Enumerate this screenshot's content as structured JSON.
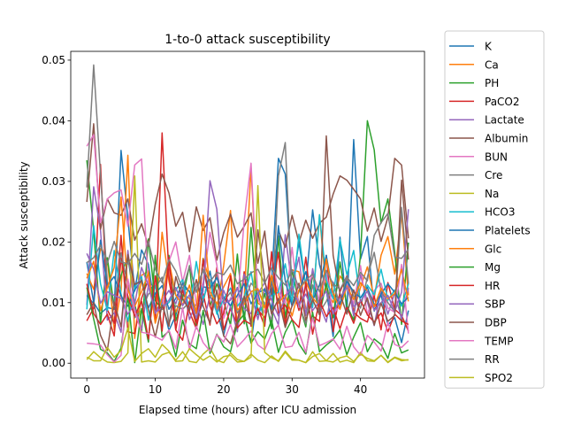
{
  "chart_data": {
    "type": "line",
    "title": "1-to-0 attack susceptibility",
    "xlabel": "Elapsed time (hours) after ICU admission",
    "ylabel": "Attack susceptibility",
    "xlim": [
      -2.35,
      49.35
    ],
    "ylim": [
      -0.00245,
      0.05145
    ],
    "xticks": [
      0,
      10,
      20,
      30,
      40
    ],
    "yticks": [
      0.0,
      0.01,
      0.02,
      0.03,
      0.04,
      0.05
    ],
    "ytick_labels": [
      "0.00",
      "0.01",
      "0.02",
      "0.03",
      "0.04",
      "0.05"
    ],
    "legend_position": "outside-right",
    "series": [
      {
        "name": "K",
        "color": "#1f77b4",
        "values": [
          0.0167,
          0.01,
          0.0082,
          0.0092,
          0.0089,
          0.0351,
          0.0239,
          0.0119,
          0.0187,
          0.0163,
          0.0086,
          0.0101,
          0.0054,
          0.0079,
          0.0125,
          0.0119,
          0.0072,
          0.0101,
          0.0152,
          0.0087,
          0.0046,
          0.0094,
          0.0125,
          0.0081,
          0.0034,
          0.0116,
          0.0067,
          0.0133,
          0.0338,
          0.0312,
          0.0128,
          0.0199,
          0.0126,
          0.0253,
          0.0163,
          0.0121,
          0.0044,
          0.0208,
          0.0083,
          0.0369,
          0.0172,
          0.0209,
          0.0086,
          0.0113,
          0.0063,
          0.0075,
          0.0034,
          0.0087
        ]
      },
      {
        "name": "Ca",
        "color": "#ff7f0e",
        "values": [
          0.0148,
          0.0122,
          0.0189,
          0.0171,
          0.0055,
          0.012,
          0.0343,
          0.0041,
          0.0145,
          0.0152,
          0.0068,
          0.0216,
          0.0135,
          0.0084,
          0.0113,
          0.0107,
          0.0061,
          0.0173,
          0.0133,
          0.0087,
          0.0161,
          0.0252,
          0.0057,
          0.0106,
          0.0322,
          0.0099,
          0.0092,
          0.0145,
          0.0115,
          0.0066,
          0.0154,
          0.0151,
          0.009,
          0.0095,
          0.0245,
          0.0118,
          0.01,
          0.0144,
          0.0128,
          0.0086,
          0.0125,
          0.0159,
          0.0107,
          0.0178,
          0.0209,
          0.0147,
          0.0246,
          0.0112
        ]
      },
      {
        "name": "PH",
        "color": "#2ca02c",
        "values": [
          0.0335,
          0.0218,
          0.0065,
          0.0174,
          0.0092,
          0.0145,
          0.0176,
          0.0097,
          0.0051,
          0.0205,
          0.0103,
          0.0089,
          0.0178,
          0.007,
          0.0107,
          0.0161,
          0.0058,
          0.0172,
          0.0094,
          0.0131,
          0.0102,
          0.0063,
          0.018,
          0.0065,
          0.0224,
          0.008,
          0.0115,
          0.0057,
          0.021,
          0.0074,
          0.0154,
          0.0099,
          0.006,
          0.0148,
          0.008,
          0.0132,
          0.0075,
          0.0167,
          0.0095,
          0.0071,
          0.0179,
          0.04,
          0.0352,
          0.0231,
          0.0271,
          0.0183,
          0.0064,
          0.0199
        ]
      },
      {
        "name": "PaCO2",
        "color": "#d62728",
        "values": [
          0.007,
          0.0091,
          0.0328,
          0.0088,
          0.0066,
          0.0211,
          0.0052,
          0.0049,
          0.0107,
          0.0139,
          0.0071,
          0.038,
          0.0144,
          0.0055,
          0.0121,
          0.0085,
          0.0057,
          0.0115,
          0.0063,
          0.0158,
          0.0055,
          0.009,
          0.0064,
          0.0151,
          0.0061,
          0.0088,
          0.0075,
          0.0116,
          0.0183,
          0.0062,
          0.0128,
          0.0087,
          0.0175,
          0.0078,
          0.0069,
          0.0178,
          0.0052,
          0.0118,
          0.0144,
          0.0084,
          0.0074,
          0.0068,
          0.0111,
          0.0055,
          0.0133,
          0.0089,
          0.0079,
          0.0053
        ]
      },
      {
        "name": "Lactate",
        "color": "#9467bd",
        "values": [
          0.0096,
          0.0291,
          0.0219,
          0.0071,
          0.0083,
          0.0051,
          0.0186,
          0.0091,
          0.0057,
          0.0129,
          0.0082,
          0.0103,
          0.012,
          0.0098,
          0.0133,
          0.0072,
          0.0099,
          0.0064,
          0.0112,
          0.0084,
          0.012,
          0.0093,
          0.0052,
          0.0147,
          0.0116,
          0.0072,
          0.0124,
          0.009,
          0.0063,
          0.0212,
          0.0128,
          0.0175,
          0.0079,
          0.0156,
          0.0096,
          0.0068,
          0.0134,
          0.0092,
          0.014,
          0.0078,
          0.0146,
          0.0101,
          0.0062,
          0.012,
          0.0081,
          0.0116,
          0.0073,
          0.0124
        ]
      },
      {
        "name": "Albumin",
        "color": "#8c564b",
        "values": [
          0.0266,
          0.0395,
          0.0221,
          0.0271,
          0.0248,
          0.0244,
          0.0271,
          0.0203,
          0.023,
          0.0193,
          0.0262,
          0.0312,
          0.0281,
          0.0226,
          0.0249,
          0.0184,
          0.0258,
          0.0219,
          0.024,
          0.017,
          0.0215,
          0.0246,
          0.0208,
          0.0226,
          0.0248,
          0.0165,
          0.0218,
          0.0112,
          0.0219,
          0.0191,
          0.0244,
          0.0199,
          0.0236,
          0.0206,
          0.0231,
          0.0241,
          0.0279,
          0.0309,
          0.0302,
          0.0287,
          0.0271,
          0.0218,
          0.0256,
          0.0201,
          0.0241,
          0.0338,
          0.0327,
          0.0206
        ]
      },
      {
        "name": "BUN",
        "color": "#e377c2",
        "values": [
          0.0358,
          0.0377,
          0.0232,
          0.0271,
          0.0281,
          0.0286,
          0.0226,
          0.0327,
          0.0337,
          0.0124,
          0.0131,
          0.009,
          0.0168,
          0.02,
          0.0134,
          0.0178,
          0.0097,
          0.0134,
          0.0216,
          0.0162,
          0.0074,
          0.0108,
          0.0098,
          0.0235,
          0.033,
          0.0107,
          0.0083,
          0.0176,
          0.0119,
          0.0098,
          0.0191,
          0.0092,
          0.0123,
          0.0146,
          0.0103,
          0.0151,
          0.0082,
          0.0094,
          0.0129,
          0.0098,
          0.0161,
          0.0079,
          0.012,
          0.0132,
          0.0091,
          0.0084,
          0.0163,
          0.0049
        ]
      },
      {
        "name": "Cre",
        "color": "#7f7f7f",
        "values": [
          0.029,
          0.0492,
          0.0311,
          0.0134,
          0.0093,
          0.0182,
          0.0129,
          0.0075,
          0.0087,
          0.0114,
          0.0124,
          0.0142,
          0.0066,
          0.0095,
          0.0089,
          0.0101,
          0.0126,
          0.0153,
          0.0108,
          0.0145,
          0.0102,
          0.0117,
          0.0083,
          0.0101,
          0.0132,
          0.012,
          0.0098,
          0.007,
          0.0309,
          0.0364,
          0.0112,
          0.0098,
          0.0065,
          0.0129,
          0.0084,
          0.0102,
          0.0131,
          0.0098,
          0.0143,
          0.011,
          0.0091,
          0.0142,
          0.0183,
          0.0119,
          0.01,
          0.0085,
          0.0257,
          0.0131
        ]
      },
      {
        "name": "Na",
        "color": "#bcbd22",
        "values": [
          0.0006,
          0.0019,
          0.0009,
          0.0002,
          0.0001,
          0.0003,
          0.0017,
          0.0309,
          0.0002,
          0.0004,
          0.0002,
          0.0014,
          0.0018,
          0.0005,
          0.0019,
          0.0003,
          0.0001,
          0.0015,
          0.0025,
          0.0005,
          0.0001,
          0.0017,
          0.0006,
          0.0003,
          0.0015,
          0.0005,
          0.0001,
          0.0012,
          0.0003,
          0.0018,
          0.0005,
          0.0005,
          0.0001,
          0.0019,
          0.0003,
          0.0004,
          0.0016,
          0.0002,
          0.0005,
          0.0001,
          0.0018,
          0.0004,
          0.0003,
          0.0013,
          0.0001,
          0.0009,
          0.0004,
          0.0006
        ]
      },
      {
        "name": "HCO3",
        "color": "#17becf",
        "values": [
          0.0089,
          0.0227,
          0.0131,
          0.0087,
          0.0186,
          0.0114,
          0.0069,
          0.0125,
          0.0143,
          0.0071,
          0.0128,
          0.0094,
          0.01,
          0.012,
          0.0138,
          0.0087,
          0.0168,
          0.0106,
          0.0138,
          0.0081,
          0.0106,
          0.0124,
          0.0094,
          0.0109,
          0.0151,
          0.0082,
          0.0098,
          0.0112,
          0.0117,
          0.0164,
          0.01,
          0.0213,
          0.0126,
          0.0092,
          0.0245,
          0.0137,
          0.0106,
          0.0204,
          0.0146,
          0.0186,
          0.01,
          0.0129,
          0.0113,
          0.0155,
          0.0104,
          0.0121,
          0.0094,
          0.0131
        ]
      },
      {
        "name": "Platelets",
        "color": "#1f77b4",
        "values": [
          0.0112,
          0.0098,
          0.0203,
          0.0128,
          0.0143,
          0.0111,
          0.0094,
          0.0121,
          0.0137,
          0.0091,
          0.0115,
          0.0128,
          0.0089,
          0.0107,
          0.0132,
          0.0118,
          0.0086,
          0.0126,
          0.0124,
          0.0141,
          0.0109,
          0.0095,
          0.0112,
          0.0131,
          0.0098,
          0.0116,
          0.0122,
          0.0089,
          0.0227,
          0.0136,
          0.0094,
          0.0118,
          0.0151,
          0.0104,
          0.0129,
          0.0178,
          0.0113,
          0.0097,
          0.0135,
          0.0118,
          0.0108,
          0.0125,
          0.0096,
          0.0114,
          0.0131,
          0.0117,
          0.0098,
          0.0109
        ]
      },
      {
        "name": "Glc",
        "color": "#ff7f0e",
        "values": [
          0.014,
          0.0168,
          0.0087,
          0.0125,
          0.0158,
          0.0274,
          0.0121,
          0.0094,
          0.0118,
          0.0149,
          0.0066,
          0.0108,
          0.0169,
          0.0112,
          0.0096,
          0.0129,
          0.0082,
          0.0244,
          0.0117,
          0.0098,
          0.0126,
          0.0148,
          0.0088,
          0.0097,
          0.0118,
          0.0123,
          0.0091,
          0.0142,
          0.0099,
          0.0113,
          0.0078,
          0.0121,
          0.0136,
          0.0108,
          0.0094,
          0.0172,
          0.0115,
          0.0089,
          0.0127,
          0.0105,
          0.0133,
          0.0119,
          0.0093,
          0.0124,
          0.0106,
          0.0115,
          0.0155,
          0.0102
        ]
      },
      {
        "name": "Mg",
        "color": "#2ca02c",
        "values": [
          0.0125,
          0.0073,
          0.0023,
          0.0017,
          0.0003,
          0.0025,
          0.0111,
          0.0001,
          0.009,
          0.0035,
          0.0178,
          0.0043,
          0.0053,
          0.0011,
          0.0071,
          0.0032,
          0.0024,
          0.0087,
          0.0016,
          0.0048,
          0.0027,
          0.0019,
          0.0067,
          0.0081,
          0.0033,
          0.0052,
          0.004,
          0.0071,
          0.0018,
          0.0051,
          0.0072,
          0.0032,
          0.0015,
          0.0084,
          0.0019,
          0.003,
          0.0039,
          0.0055,
          0.0014,
          0.0043,
          0.0067,
          0.0019,
          0.004,
          0.0031,
          0.0008,
          0.0049,
          0.0017,
          0.0022
        ]
      },
      {
        "name": "HR",
        "color": "#d62728",
        "values": [
          0.0131,
          0.0082,
          0.0064,
          0.0081,
          0.0045,
          0.0173,
          0.011,
          0.0078,
          0.0102,
          0.004,
          0.0144,
          0.0053,
          0.0174,
          0.0055,
          0.0038,
          0.0102,
          0.0066,
          0.0171,
          0.0094,
          0.0065,
          0.0082,
          0.0144,
          0.0058,
          0.0071,
          0.0064,
          0.0091,
          0.0061,
          0.0184,
          0.0082,
          0.0096,
          0.0072,
          0.0059,
          0.0133,
          0.0048,
          0.0104,
          0.0077,
          0.0092,
          0.0057,
          0.0092,
          0.0066,
          0.0104,
          0.008,
          0.0068,
          0.0083,
          0.0052,
          0.0081,
          0.007,
          0.0064
        ]
      },
      {
        "name": "SBP",
        "color": "#9467bd",
        "values": [
          0.0181,
          0.0155,
          0.0099,
          0.0118,
          0.0112,
          0.0107,
          0.0081,
          0.0098,
          0.0158,
          0.0127,
          0.0084,
          0.0091,
          0.0104,
          0.0125,
          0.0095,
          0.0113,
          0.0074,
          0.0119,
          0.0301,
          0.0254,
          0.0098,
          0.0104,
          0.0124,
          0.009,
          0.0082,
          0.0115,
          0.0133,
          0.0104,
          0.0078,
          0.0109,
          0.0127,
          0.0096,
          0.0114,
          0.0087,
          0.0102,
          0.0119,
          0.0081,
          0.0108,
          0.0125,
          0.0094,
          0.0102,
          0.0119,
          0.0087,
          0.01,
          0.0112,
          0.0085,
          0.0117,
          0.0254
        ]
      },
      {
        "name": "DBP",
        "color": "#8c564b",
        "values": [
          0.008,
          0.01,
          0.0046,
          0.0021,
          0.0101,
          0.006,
          0.0179,
          0.013,
          0.0136,
          0.0088,
          0.0043,
          0.0096,
          0.0061,
          0.0143,
          0.0107,
          0.0087,
          0.0138,
          0.0094,
          0.0066,
          0.0121,
          0.0045,
          0.0032,
          0.0071,
          0.0111,
          0.0064,
          0.022,
          0.0137,
          0.0081,
          0.0107,
          0.0059,
          0.0095,
          0.0132,
          0.0071,
          0.0105,
          0.008,
          0.0375,
          0.0178,
          0.0115,
          0.0081,
          0.0121,
          0.0079,
          0.0108,
          0.0063,
          0.0099,
          0.0069,
          0.0079,
          0.0302,
          0.0171
        ]
      },
      {
        "name": "TEMP",
        "color": "#e377c2",
        "values": [
          0.0033,
          0.0032,
          0.003,
          0.0014,
          0.0002,
          0.0013,
          0.0139,
          0.0086,
          0.0051,
          0.0049,
          0.0044,
          0.0038,
          0.0055,
          0.0024,
          0.0092,
          0.0023,
          0.0061,
          0.0034,
          0.002,
          0.0047,
          0.0035,
          0.0064,
          0.0027,
          0.0039,
          0.0053,
          0.003,
          0.0022,
          0.0049,
          0.0063,
          0.0026,
          0.0028,
          0.0051,
          0.0018,
          0.0075,
          0.0029,
          0.0034,
          0.004,
          0.0023,
          0.0061,
          0.0027,
          0.0013,
          0.0046,
          0.0035,
          0.002,
          0.0068,
          0.0031,
          0.0026,
          0.0037
        ]
      },
      {
        "name": "RR",
        "color": "#7f7f7f",
        "values": [
          0.0166,
          0.0174,
          0.0195,
          0.0165,
          0.0201,
          0.0167,
          0.0164,
          0.0181,
          0.0163,
          0.0201,
          0.0155,
          0.0133,
          0.0171,
          0.0152,
          0.0122,
          0.016,
          0.0117,
          0.0155,
          0.0134,
          0.015,
          0.0146,
          0.0162,
          0.0131,
          0.0139,
          0.0149,
          0.0155,
          0.0132,
          0.0157,
          0.0141,
          0.0129,
          0.0154,
          0.0124,
          0.0137,
          0.0147,
          0.0118,
          0.0153,
          0.0131,
          0.0122,
          0.0142,
          0.0128,
          0.015,
          0.0136,
          0.0211,
          0.0232,
          0.0247,
          0.0175,
          0.0173,
          0.0188
        ]
      },
      {
        "name": "SPO2",
        "color": "#bcbd22",
        "values": [
          0.001,
          0.0004,
          0.0004,
          0.0026,
          0.001,
          0.0021,
          0.0058,
          0.0003,
          0.0016,
          0.0024,
          0.001,
          0.0031,
          0.002,
          0.0003,
          0.0004,
          0.0024,
          0.0014,
          0.0005,
          0.0012,
          0.0002,
          0.0011,
          0.0013,
          0.0002,
          0.0003,
          0.001,
          0.0293,
          0.0018,
          0.0009,
          0.0004,
          0.002,
          0.0007,
          0.0005,
          0.0001,
          0.0011,
          0.0016,
          0.0004,
          0.0002,
          0.0009,
          0.0012,
          0.0003,
          0.0015,
          0.0008,
          0.0004,
          0.0013,
          0.0002,
          0.001,
          0.0006,
          0.0005
        ]
      }
    ]
  }
}
